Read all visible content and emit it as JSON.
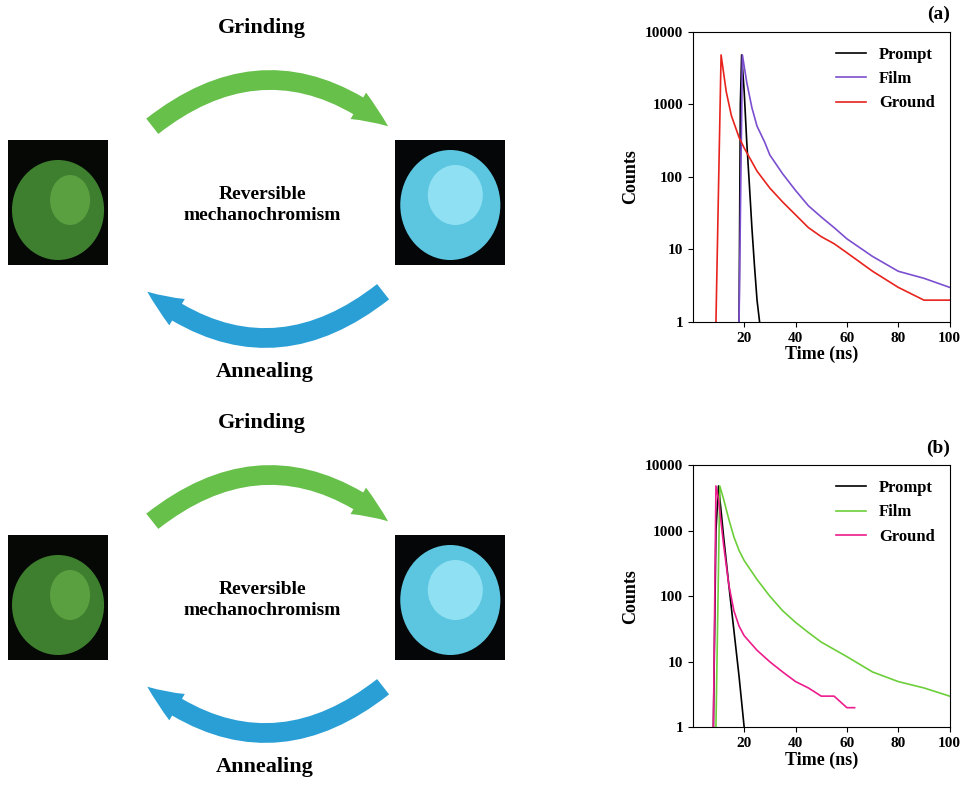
{
  "chart_data": [
    {
      "type": "line",
      "title": "(a)",
      "x_label": "Time (ns)",
      "y_label": "Counts",
      "log": "y",
      "legend": "upper right",
      "xlim": [
        0,
        100
      ],
      "xticks": [
        20,
        40,
        60,
        80,
        100
      ],
      "ylim": [
        1,
        10000
      ],
      "yticks": [
        1,
        10,
        100,
        1000,
        10000
      ],
      "series": [
        {
          "name": "Prompt",
          "color": "#000000",
          "x": [
            18,
            18.5,
            19,
            20,
            21,
            22,
            23,
            24,
            25,
            26
          ],
          "values": [
            1,
            1000,
            4800,
            1500,
            300,
            80,
            20,
            6,
            2,
            1
          ]
        },
        {
          "name": "Film",
          "color": "#7b4fd0",
          "x": [
            18,
            19.3,
            21,
            23,
            25,
            28,
            30,
            35,
            40,
            45,
            50,
            55,
            60,
            70,
            80,
            90,
            100
          ],
          "values": [
            1,
            4800,
            2000,
            900,
            500,
            300,
            200,
            110,
            65,
            40,
            28,
            20,
            14,
            8,
            5,
            4,
            3
          ]
        },
        {
          "name": "Ground",
          "color": "#e8231d",
          "x": [
            9,
            11,
            13,
            15,
            18,
            20,
            25,
            30,
            35,
            40,
            45,
            50,
            55,
            60,
            70,
            80,
            90,
            100
          ],
          "values": [
            1,
            4800,
            1500,
            700,
            350,
            250,
            120,
            70,
            45,
            30,
            20,
            15,
            12,
            9,
            5,
            3,
            2,
            2
          ]
        }
      ]
    },
    {
      "type": "line",
      "title": "(b)",
      "x_label": "Time (ns)",
      "y_label": "Counts",
      "log": "y",
      "legend": "upper right",
      "xlim": [
        0,
        100
      ],
      "xticks": [
        20,
        40,
        60,
        80,
        100
      ],
      "ylim": [
        1,
        10000
      ],
      "yticks": [
        1,
        10,
        100,
        1000,
        10000
      ],
      "series": [
        {
          "name": "Prompt",
          "color": "#000000",
          "x": [
            8,
            9,
            10,
            11,
            12,
            14,
            16,
            18,
            20
          ],
          "values": [
            1,
            1000,
            4800,
            2000,
            800,
            150,
            30,
            6,
            1
          ]
        },
        {
          "name": "Film",
          "color": "#6ccf3a",
          "x": [
            9,
            10.5,
            12,
            14,
            16,
            18,
            20,
            25,
            30,
            35,
            40,
            45,
            50,
            60,
            70,
            80,
            90,
            100
          ],
          "values": [
            1,
            4800,
            3000,
            1500,
            800,
            500,
            350,
            180,
            100,
            60,
            40,
            28,
            20,
            12,
            7,
            5,
            4,
            3
          ]
        },
        {
          "name": "Ground",
          "color": "#ec1c8c",
          "x": [
            8,
            9,
            10,
            12,
            14,
            16,
            18,
            20,
            25,
            30,
            35,
            40,
            45,
            50,
            55,
            60,
            63
          ],
          "values": [
            1,
            4800,
            3000,
            600,
            150,
            60,
            35,
            25,
            15,
            10,
            7,
            5,
            4,
            3,
            3,
            2,
            2
          ]
        }
      ]
    }
  ],
  "diagram": {
    "rows": [
      {
        "top_arrow": "Grinding",
        "center": "Reversible\nmechanochromism",
        "bottom_arrow": "Annealing"
      },
      {
        "top_arrow": "Grinding",
        "center": "Reversible\nmechanochromism",
        "bottom_arrow": "Annealing"
      }
    ]
  }
}
